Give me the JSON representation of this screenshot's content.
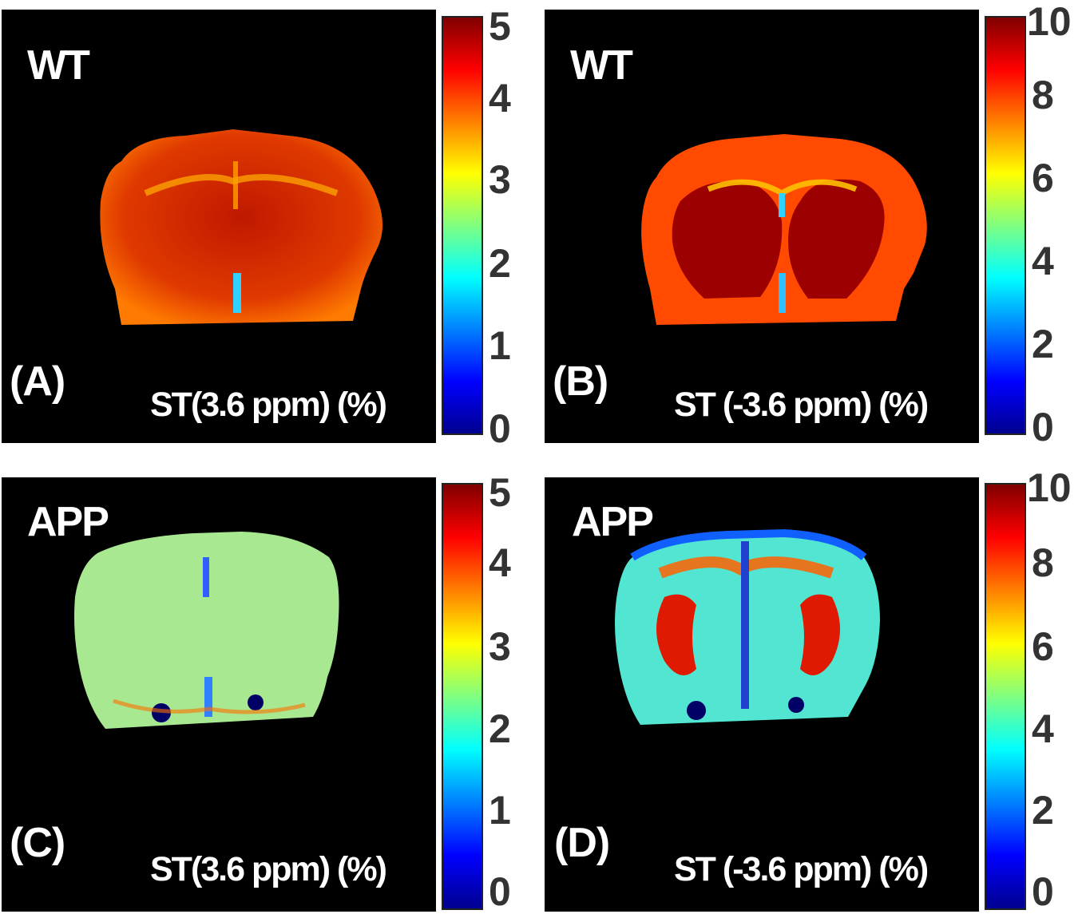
{
  "panels": {
    "A": {
      "group": "WT",
      "label": "(A)",
      "metric": "ST(3.6 ppm) (%)"
    },
    "B": {
      "group": "WT",
      "label": "(B)",
      "metric": "ST (-3.6 ppm) (%)"
    },
    "C": {
      "group": "APP",
      "label": "(C)",
      "metric": "ST(3.6 ppm) (%)"
    },
    "D": {
      "group": "APP",
      "label": "(D)",
      "metric": "ST (-3.6 ppm) (%)"
    }
  },
  "colorbars": {
    "st_pos": {
      "min": 0,
      "max": 5,
      "ticks": [
        "5",
        "4",
        "3",
        "2",
        "1",
        "0"
      ]
    },
    "st_neg": {
      "min": 0,
      "max": 10,
      "ticks": [
        "10",
        "8",
        "6",
        "4",
        "2",
        "0"
      ]
    }
  },
  "colors": {
    "background": "#000000",
    "wt_pos_tissue": "#d42a00",
    "wt_neg_tissue": "#ff3a00",
    "wt_neg_core": "#9a0000",
    "app_pos_tissue": "#9be08a",
    "app_neg_tissue": "#4ee6d0",
    "app_neg_ring": "#e33000"
  }
}
